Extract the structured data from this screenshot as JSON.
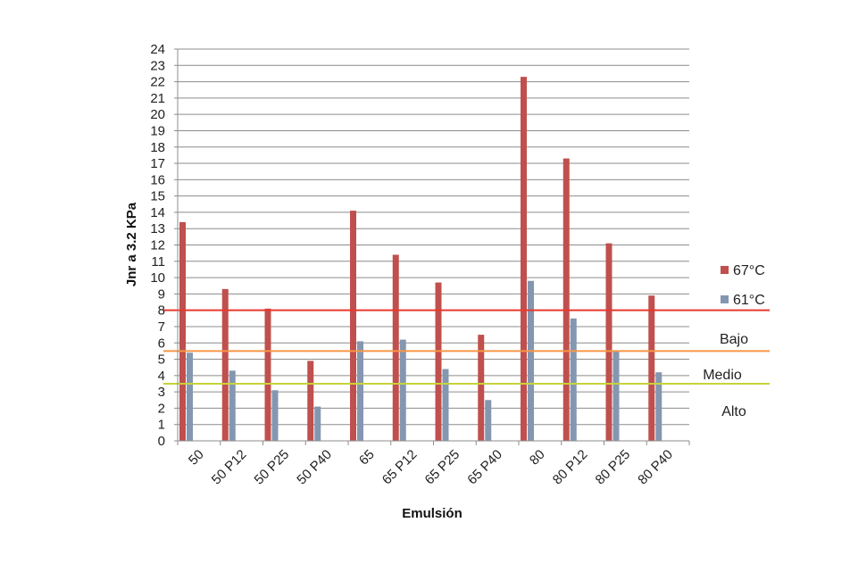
{
  "chart_data": {
    "type": "bar",
    "title": "",
    "xlabel": "Emulsión",
    "ylabel": "Jnr a 3.2 KPa",
    "ylim": [
      0,
      24
    ],
    "ytick_step": 1,
    "grid": true,
    "legend_position": "right",
    "categories": [
      "50",
      "50 P12",
      "50 P25",
      "50 P40",
      "65",
      "65 P12",
      "65 P25",
      "65 P40",
      "80",
      "80 P12",
      "80 P25",
      "80 P40"
    ],
    "series": [
      {
        "name": "67°C",
        "color": "#c0504d",
        "values": [
          13.4,
          9.3,
          8.1,
          4.9,
          14.1,
          11.4,
          9.7,
          6.5,
          22.3,
          17.3,
          12.1,
          8.9
        ]
      },
      {
        "name": "61°C",
        "color": "#8497b0",
        "values": [
          5.4,
          4.3,
          3.1,
          2.1,
          6.1,
          6.2,
          4.4,
          2.5,
          9.8,
          7.5,
          5.5,
          4.2
        ]
      }
    ],
    "reference_lines": [
      {
        "value": 8.0,
        "color": "#e8392c"
      },
      {
        "value": 5.5,
        "color": "#f79646"
      },
      {
        "value": 3.5,
        "color": "#c6d43a"
      }
    ],
    "zone_labels": [
      "Bajo",
      "Medio",
      "Alto"
    ]
  }
}
